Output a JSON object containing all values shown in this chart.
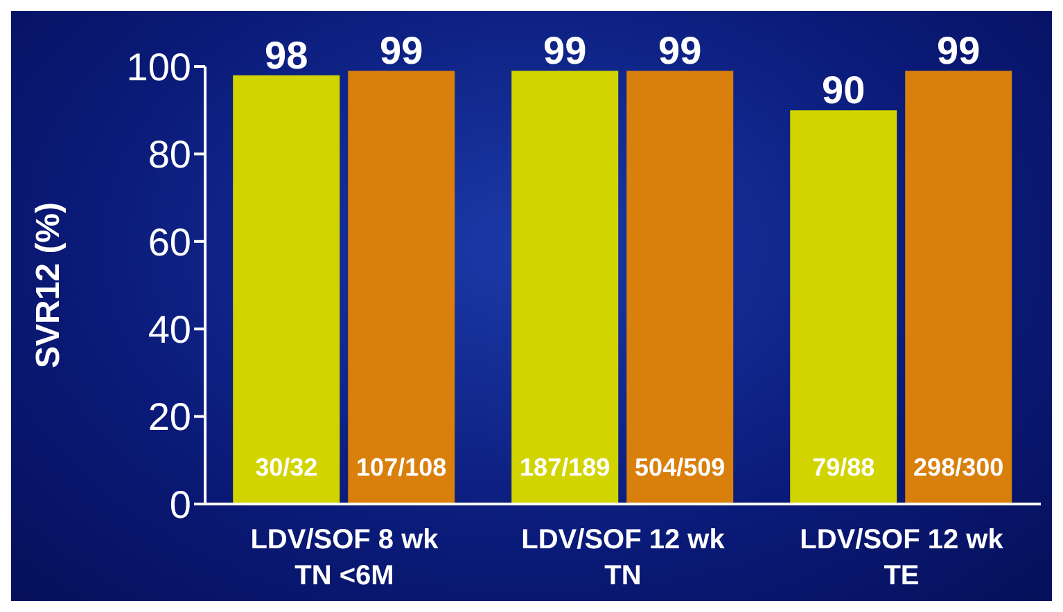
{
  "chart_data": {
    "type": "bar",
    "ylabel": "SVR12 (%)",
    "categories": [
      "LDV/SOF 8 wk\nTN <6M",
      "LDV/SOF 12 wk\nTN",
      "LDV/SOF 12 wk\nTE"
    ],
    "series": [
      {
        "color": "#d2d400",
        "values": [
          98,
          99,
          90
        ]
      },
      {
        "color": "#d97f0c",
        "values": [
          99,
          99,
          99
        ]
      }
    ],
    "ylim": [
      0,
      100
    ],
    "yticks": [
      0,
      20,
      40,
      60,
      80,
      100
    ],
    "data_labels": true,
    "grid": false,
    "legend": false,
    "annotations": [
      {
        "text": "30/32",
        "x": "LDV/SOF 8 wk\nTN <6M",
        "y": 8
      },
      {
        "text": "107/108",
        "x": "LDV/SOF 8 wk\nTN <6M",
        "y": 8
      },
      {
        "text": "187/189",
        "x": "LDV/SOF 12 wk\nTN",
        "y": 8
      },
      {
        "text": "504/509",
        "x": "LDV/SOF 12 wk\nTN",
        "y": 8
      },
      {
        "text": "79/88",
        "x": "LDV/SOF 12 wk\nTE",
        "y": 8
      },
      {
        "text": "298/300",
        "x": "LDV/SOF 12 wk\nTE",
        "y": 8
      }
    ]
  }
}
